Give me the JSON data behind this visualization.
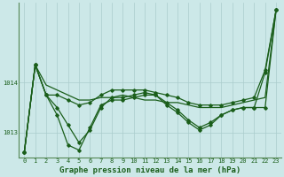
{
  "background_color": "#cce8e8",
  "grid_color": "#aacccc",
  "line_color": "#1a5e1a",
  "title": "Graphe pression niveau de la mer (hPa)",
  "xlim": [
    -0.5,
    23.5
  ],
  "ylim": [
    1012.5,
    1015.6
  ],
  "yticks": [
    1013,
    1014
  ],
  "xticks": [
    0,
    1,
    2,
    3,
    4,
    5,
    6,
    7,
    8,
    9,
    10,
    11,
    12,
    13,
    14,
    15,
    16,
    17,
    18,
    19,
    20,
    21,
    22,
    23
  ],
  "series": [
    {
      "x": [
        0,
        1,
        2,
        3,
        4,
        5,
        6,
        7,
        8,
        9,
        10,
        11,
        12,
        13,
        14,
        15,
        16,
        17,
        18,
        19,
        20,
        21,
        22,
        23
      ],
      "y": [
        1012.6,
        1014.35,
        1013.95,
        1013.85,
        1013.75,
        1013.65,
        1013.65,
        1013.7,
        1013.7,
        1013.75,
        1013.7,
        1013.65,
        1013.65,
        1013.6,
        1013.6,
        1013.55,
        1013.5,
        1013.5,
        1013.5,
        1013.55,
        1013.6,
        1013.65,
        1013.7,
        1015.45
      ],
      "marker": false,
      "linewidth": 0.9
    },
    {
      "x": [
        0,
        1,
        2,
        3,
        4,
        5,
        6,
        7,
        8,
        9,
        10,
        11,
        12,
        13,
        14,
        15,
        16,
        17,
        18,
        19,
        20,
        21,
        22,
        23
      ],
      "y": [
        1012.6,
        1014.35,
        1013.75,
        1013.5,
        1013.15,
        1012.8,
        1013.05,
        1013.5,
        1013.7,
        1013.7,
        1013.75,
        1013.8,
        1013.75,
        1013.6,
        1013.45,
        1013.25,
        1013.1,
        1013.2,
        1013.35,
        1013.45,
        1013.5,
        1013.5,
        1014.2,
        1015.45
      ],
      "marker": true,
      "linewidth": 0.9
    },
    {
      "x": [
        0,
        1,
        2,
        3,
        4,
        5,
        6,
        7,
        8,
        9,
        10,
        11,
        12,
        13,
        14,
        15,
        16,
        17,
        18,
        19,
        20,
        21,
        22,
        23
      ],
      "y": [
        1012.6,
        1014.35,
        1013.75,
        1013.35,
        1012.75,
        1012.65,
        1013.1,
        1013.55,
        1013.65,
        1013.65,
        1013.7,
        1013.75,
        1013.75,
        1013.55,
        1013.4,
        1013.2,
        1013.05,
        1013.15,
        1013.35,
        1013.45,
        1013.5,
        1013.5,
        1013.5,
        1015.45
      ],
      "marker": true,
      "linewidth": 0.9
    },
    {
      "x": [
        0,
        1,
        2,
        3,
        4,
        5,
        6,
        7,
        8,
        9,
        10,
        11,
        12,
        13,
        14,
        15,
        16,
        17,
        18,
        19,
        20,
        21,
        22,
        23
      ],
      "y": [
        1012.6,
        1014.35,
        1013.75,
        1013.75,
        1013.65,
        1013.55,
        1013.6,
        1013.75,
        1013.85,
        1013.85,
        1013.85,
        1013.85,
        1013.8,
        1013.75,
        1013.7,
        1013.6,
        1013.55,
        1013.55,
        1013.55,
        1013.6,
        1013.65,
        1013.7,
        1014.25,
        1015.45
      ],
      "marker": true,
      "linewidth": 0.9
    }
  ],
  "title_fontsize": 6.5,
  "tick_fontsize": 5.0,
  "title_color": "#1a5e1a",
  "tick_color": "#1a5e1a",
  "axis_color": "#558855"
}
